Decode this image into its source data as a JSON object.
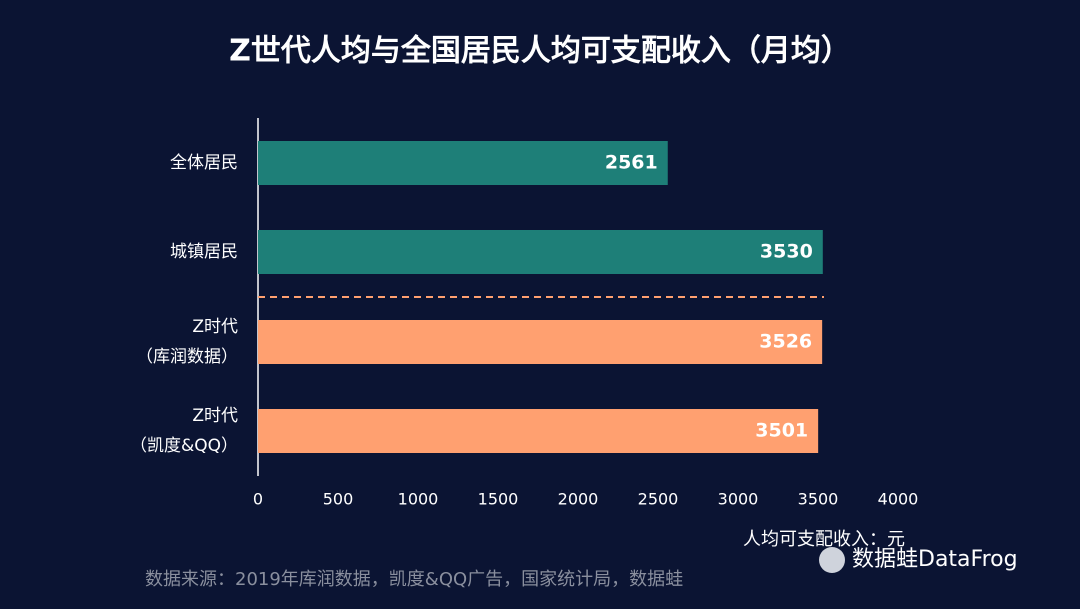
{
  "chart_data": {
    "type": "bar",
    "orientation": "horizontal",
    "title": "Z世代人均与全国居民人均可支配收入（月均）",
    "categories": [
      [
        "全体居民"
      ],
      [
        "城镇居民"
      ],
      [
        "Z时代",
        "（库润数据）"
      ],
      [
        "Z时代",
        "（凯度&QQ）"
      ]
    ],
    "values": [
      2561,
      3530,
      3526,
      3501
    ],
    "colors": [
      "#1e7f78",
      "#1e7f78",
      "#ffa070",
      "#ffa070"
    ],
    "xlim": [
      0,
      4000
    ],
    "xticks": [
      0,
      500,
      1000,
      1500,
      2000,
      2500,
      3000,
      3500,
      4000
    ],
    "x_label": "人均可支配收入：元",
    "source": "数据来源：2019年库润数据，凯度&QQ广告，国家统计局，数据蛙",
    "watermark": "数据蛙DataFrog"
  }
}
